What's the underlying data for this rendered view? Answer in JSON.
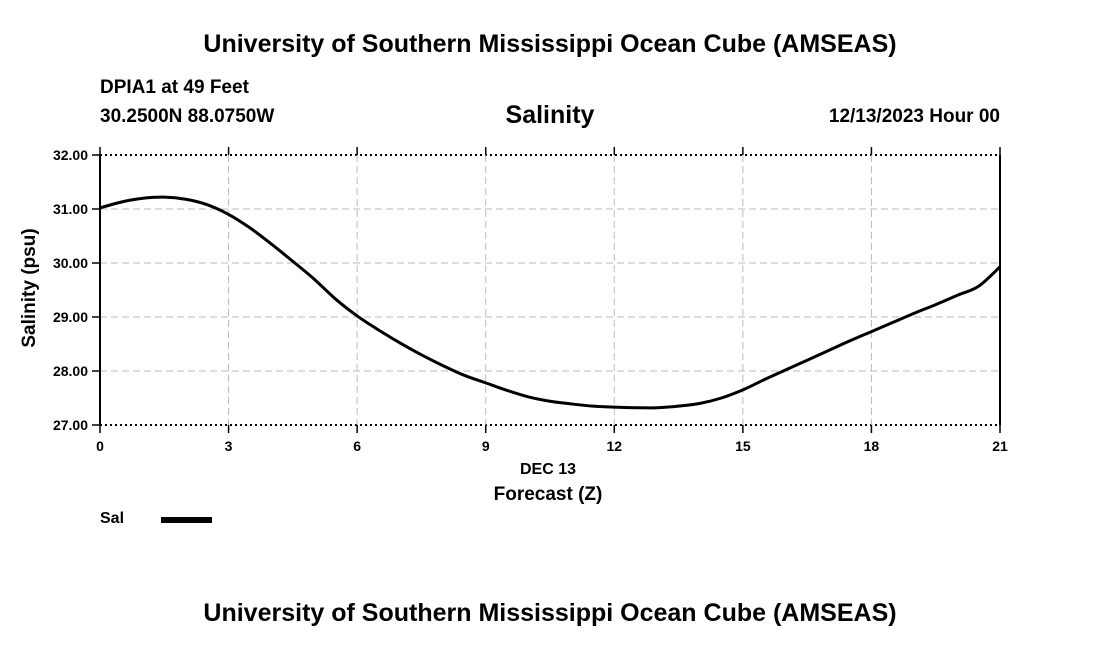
{
  "header": {
    "title": "University of Southern Mississippi Ocean Cube (AMSEAS)",
    "station": "DPIA1 at 49 Feet",
    "coordinates": "30.2500N  88.0750W",
    "datetime": "12/13/2023 Hour 00"
  },
  "footer": {
    "title": "University of Southern Mississippi Ocean Cube (AMSEAS)"
  },
  "legend": {
    "label": "Sal"
  },
  "chart_data": {
    "type": "line",
    "title": "Salinity",
    "xlabel": "Forecast (Z)",
    "x_date_label": "DEC 13",
    "ylabel": "Salinity (psu)",
    "xlim": [
      0,
      21
    ],
    "ylim": [
      27,
      32
    ],
    "xticks": [
      0,
      3,
      6,
      9,
      12,
      15,
      18,
      21
    ],
    "xtick_labels": [
      "0",
      "3",
      "6",
      "9",
      "12",
      "15",
      "18",
      "21"
    ],
    "yticks": [
      27,
      28,
      29,
      30,
      31,
      32
    ],
    "ytick_labels": [
      "27.00",
      "28.00",
      "29.00",
      "30.00",
      "31.00",
      "32.00"
    ],
    "grid": true,
    "line_color": "#000000",
    "grid_color": "#bbbbbb",
    "series": [
      {
        "name": "Sal",
        "x": [
          0,
          0.5,
          1,
          1.5,
          2,
          2.5,
          3,
          3.5,
          4,
          4.5,
          5,
          5.5,
          6,
          6.5,
          7,
          7.5,
          8,
          8.5,
          9,
          9.5,
          10,
          10.5,
          11,
          11.5,
          12,
          12.5,
          13,
          13.5,
          14,
          14.5,
          15,
          15.5,
          16,
          16.5,
          17,
          17.5,
          18,
          18.5,
          19,
          19.5,
          20,
          20.5,
          21
        ],
        "values": [
          31.02,
          31.13,
          31.2,
          31.22,
          31.18,
          31.08,
          30.9,
          30.65,
          30.35,
          30.03,
          29.7,
          29.33,
          29.02,
          28.76,
          28.52,
          28.3,
          28.1,
          27.92,
          27.78,
          27.64,
          27.52,
          27.44,
          27.39,
          27.35,
          27.33,
          27.32,
          27.32,
          27.35,
          27.4,
          27.5,
          27.65,
          27.84,
          28.02,
          28.2,
          28.38,
          28.56,
          28.73,
          28.9,
          29.07,
          29.23,
          29.4,
          29.57,
          29.93
        ]
      }
    ]
  }
}
